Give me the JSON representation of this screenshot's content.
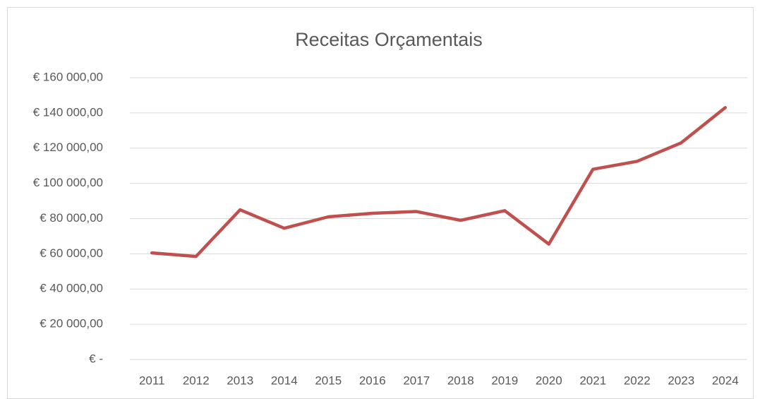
{
  "chart_data": {
    "type": "line",
    "title": "Receitas Orçamentais",
    "categories": [
      "2011",
      "2012",
      "2013",
      "2014",
      "2015",
      "2016",
      "2017",
      "2018",
      "2019",
      "2020",
      "2021",
      "2022",
      "2023",
      "2024"
    ],
    "series": [
      {
        "name": "Receitas Orçamentais",
        "color": "#c0504d",
        "values": [
          60500,
          58500,
          85000,
          74500,
          81000,
          83000,
          84000,
          79000,
          84500,
          65500,
          108000,
          112500,
          123000,
          143000
        ]
      }
    ],
    "ylim": [
      0,
      160000
    ],
    "yticks": [
      {
        "value": 0,
        "label": "€ -"
      },
      {
        "value": 20000,
        "label": "€ 20 000,00"
      },
      {
        "value": 40000,
        "label": "€ 40 000,00"
      },
      {
        "value": 60000,
        "label": "€ 60 000,00"
      },
      {
        "value": 80000,
        "label": "€ 80 000,00"
      },
      {
        "value": 100000,
        "label": "€ 100 000,00"
      },
      {
        "value": 120000,
        "label": "€ 120 000,00"
      },
      {
        "value": 140000,
        "label": "€ 140 000,00"
      },
      {
        "value": 160000,
        "label": "€ 160 000,00"
      }
    ],
    "grid": true
  }
}
